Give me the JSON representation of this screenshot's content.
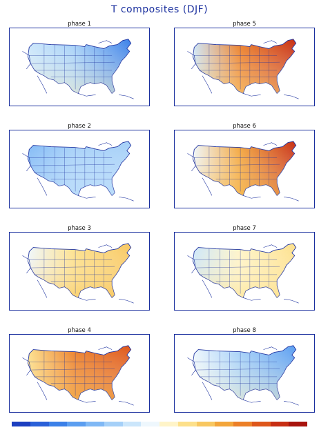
{
  "title": "T composites (DJF)",
  "panels": [
    {
      "label": "phase 1",
      "west": 0.4,
      "central": 0.3,
      "east": 0.15,
      "gulf": 0.55
    },
    {
      "label": "phase 5",
      "west": 0.38,
      "central": 0.82,
      "east": 0.95,
      "gulf": 0.62
    },
    {
      "label": "phase 2",
      "west": 0.28,
      "central": 0.3,
      "east": 0.35,
      "gulf": 0.4
    },
    {
      "label": "phase 6",
      "west": 0.48,
      "central": 0.7,
      "east": 0.92,
      "gulf": 0.68
    },
    {
      "label": "phase 3",
      "west": 0.48,
      "central": 0.62,
      "east": 0.64,
      "gulf": 0.64
    },
    {
      "label": "phase 7",
      "west": 0.4,
      "central": 0.56,
      "east": 0.63,
      "gulf": 0.58
    },
    {
      "label": "phase 4",
      "west": 0.58,
      "central": 0.8,
      "east": 0.88,
      "gulf": 0.66
    },
    {
      "label": "phase 8",
      "west": 0.48,
      "central": 0.32,
      "east": 0.18,
      "gulf": 0.5
    }
  ],
  "colorbar": [
    "#1c3fc0",
    "#2a60d8",
    "#3b80e8",
    "#5b9ef0",
    "#7fb8f5",
    "#a5d0f8",
    "#cbe6fb",
    "#eef7fd",
    "#fff4c8",
    "#fde08a",
    "#f8c760",
    "#f3a53a",
    "#ec7f27",
    "#de561a",
    "#c72e13",
    "#a8140d"
  ]
}
